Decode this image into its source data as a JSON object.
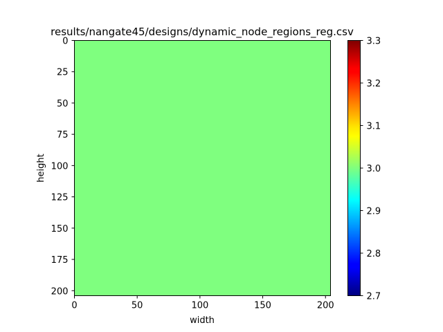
{
  "chart_data": {
    "type": "heatmap",
    "title": "results/nangate45/designs/dynamic_node_regions_reg.csv",
    "xlabel": "width",
    "ylabel": "height",
    "x_extent": [
      0,
      204
    ],
    "y_extent": [
      0,
      204
    ],
    "y_inverted": true,
    "x_ticks": [
      0,
      50,
      100,
      150,
      200
    ],
    "x_tick_labels": [
      "0",
      "50",
      "100",
      "150",
      "200"
    ],
    "y_ticks": [
      0,
      25,
      50,
      75,
      100,
      125,
      150,
      175,
      200
    ],
    "y_tick_labels": [
      "0",
      "25",
      "50",
      "75",
      "100",
      "125",
      "150",
      "175",
      "200"
    ],
    "values_description": "uniform",
    "uniform_value": 3.0,
    "colormap": "jet",
    "colorbar": {
      "range": [
        2.7,
        3.3
      ],
      "ticks": [
        2.7,
        2.8,
        2.9,
        3.0,
        3.1,
        3.2,
        3.3
      ],
      "tick_labels": [
        "2.7",
        "2.8",
        "2.9",
        "3.0",
        "3.1",
        "3.2",
        "3.3"
      ]
    },
    "fill_color": "#7fff7f",
    "grid": false
  }
}
